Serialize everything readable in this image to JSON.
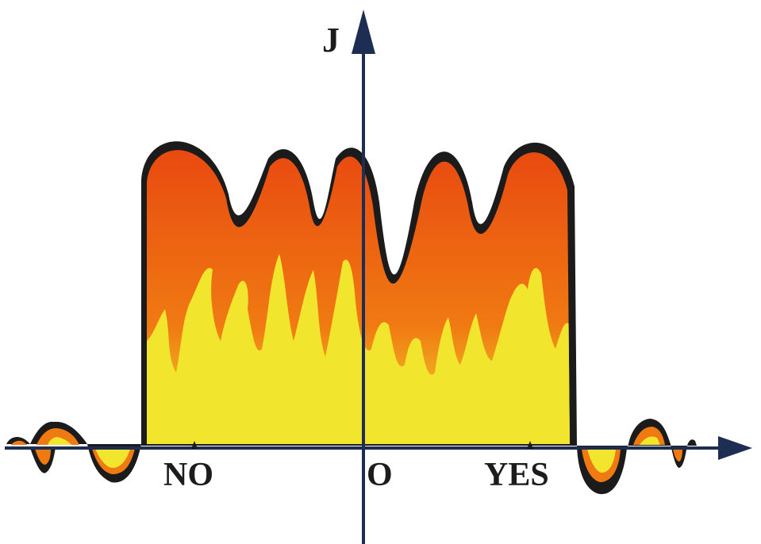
{
  "axis_labels": {
    "y": "J",
    "origin": "O",
    "left_point": "NO",
    "right_point": "YES"
  },
  "colors": {
    "outline": "#1b1b1b",
    "fill_dark": "#e84a10",
    "fill_mid": "#f07a12",
    "flame": "#f2e52e",
    "axis": "#1e2e52"
  }
}
